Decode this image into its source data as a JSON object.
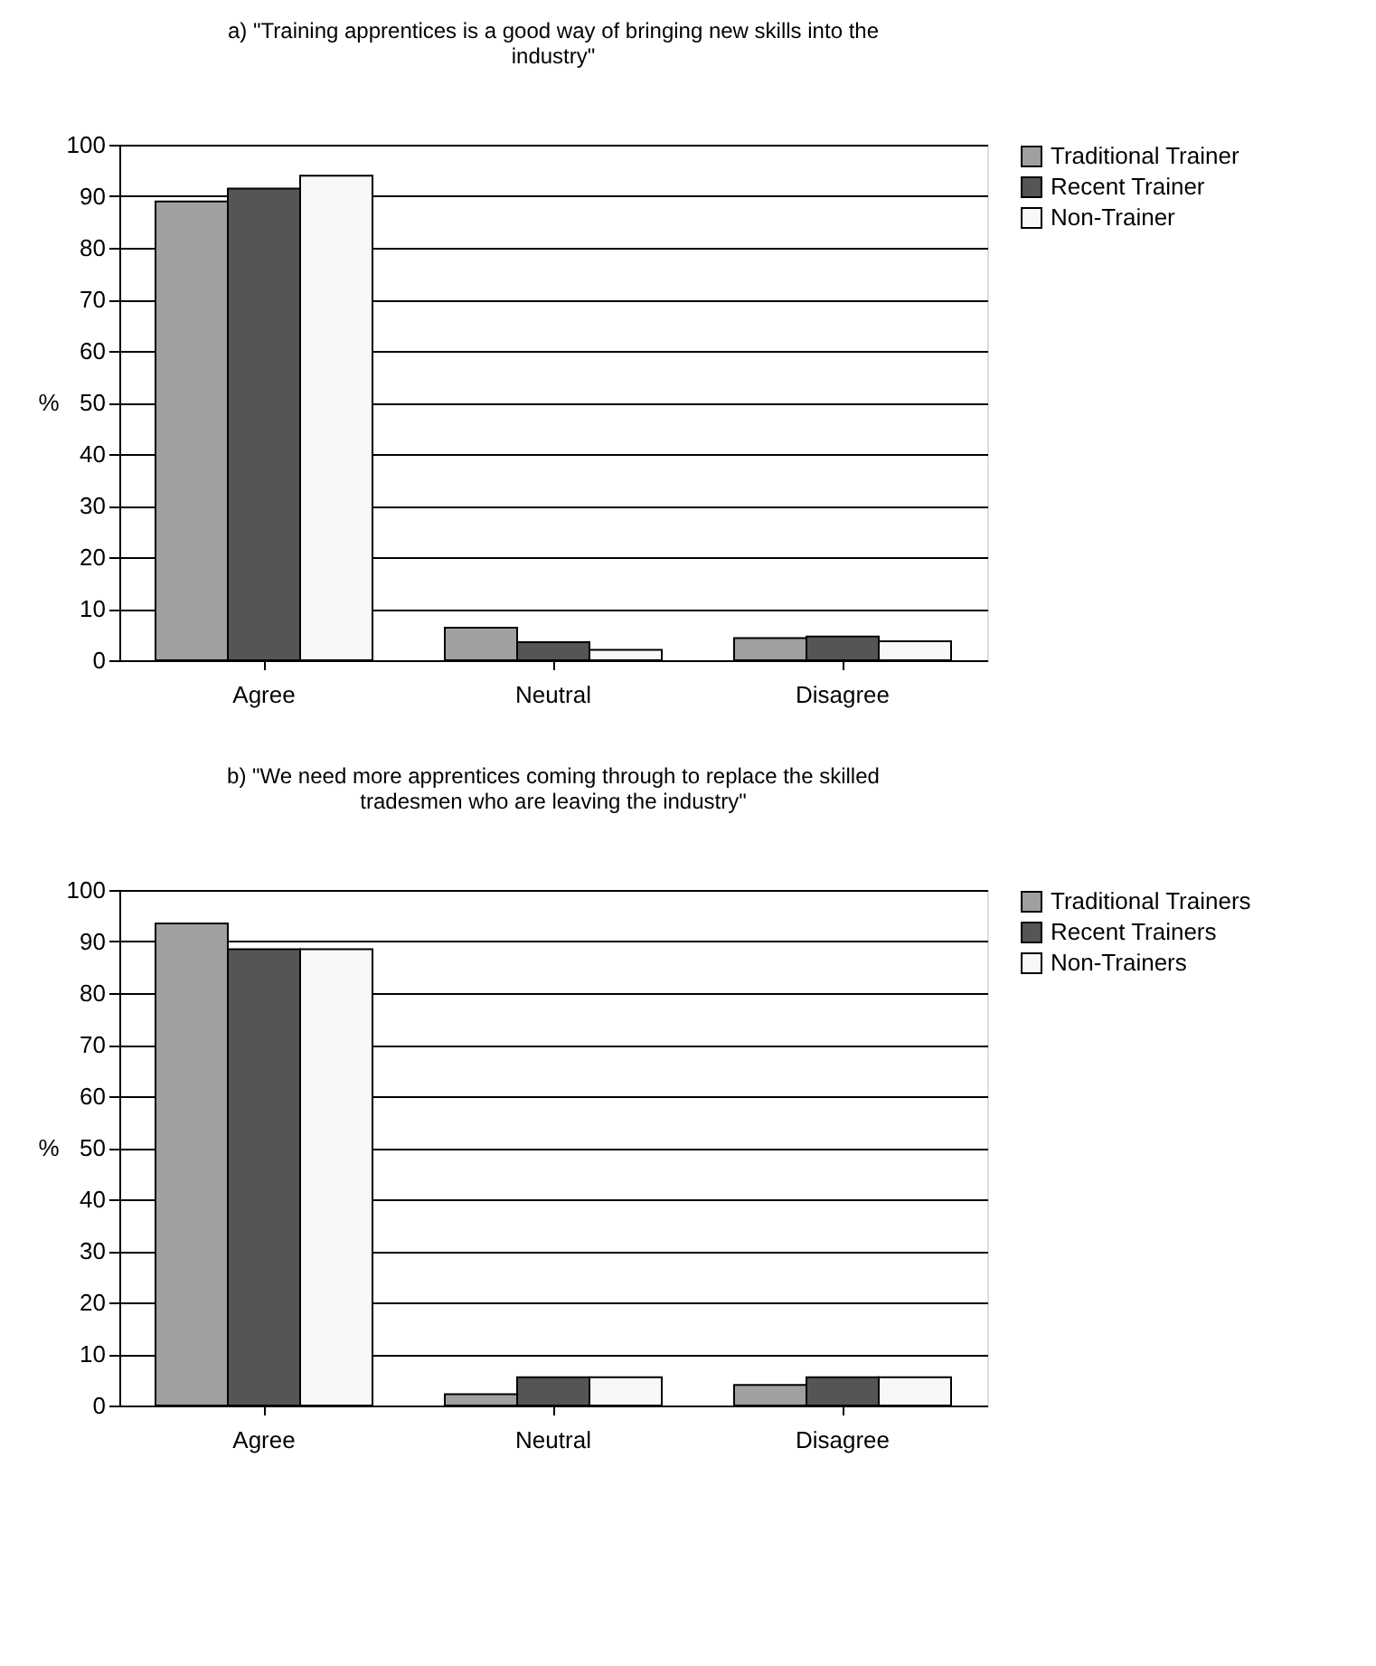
{
  "chart_data": [
    {
      "type": "bar",
      "title": "a) \"Training apprentices is a good way of bringing new skills into the industry\"",
      "ylabel": "%",
      "categories": [
        "Agree",
        "Neutral",
        "Disagree"
      ],
      "series": [
        {
          "name": "Traditional Trainer",
          "color": "#a0a0a0",
          "values": [
            89,
            6.3,
            4.3
          ]
        },
        {
          "name": "Recent Trainer",
          "color": "#555555",
          "values": [
            91.5,
            3.5,
            4.6
          ]
        },
        {
          "name": "Non-Trainer",
          "color": "#f8f8f8",
          "values": [
            94,
            2,
            3.7
          ]
        }
      ],
      "ylim": [
        0,
        100
      ],
      "yticks": [
        0,
        10,
        20,
        30,
        40,
        50,
        60,
        70,
        80,
        90,
        100
      ],
      "grid": "y",
      "legend": "right"
    },
    {
      "type": "bar",
      "title": "b) \"We need more apprentices coming through to replace the skilled tradesmen who are leaving the industry\"",
      "ylabel": "%",
      "categories": [
        "Agree",
        "Neutral",
        "Disagree"
      ],
      "series": [
        {
          "name": "Traditional Trainers",
          "color": "#a0a0a0",
          "values": [
            93.5,
            2.2,
            4
          ]
        },
        {
          "name": "Recent Trainers",
          "color": "#555555",
          "values": [
            88.5,
            5.5,
            5.5
          ]
        },
        {
          "name": "Non-Trainers",
          "color": "#f8f8f8",
          "values": [
            88.5,
            5.5,
            5.5
          ]
        }
      ],
      "ylim": [
        0,
        100
      ],
      "yticks": [
        0,
        10,
        20,
        30,
        40,
        50,
        60,
        70,
        80,
        90,
        100
      ],
      "grid": "y",
      "legend": "right"
    }
  ]
}
